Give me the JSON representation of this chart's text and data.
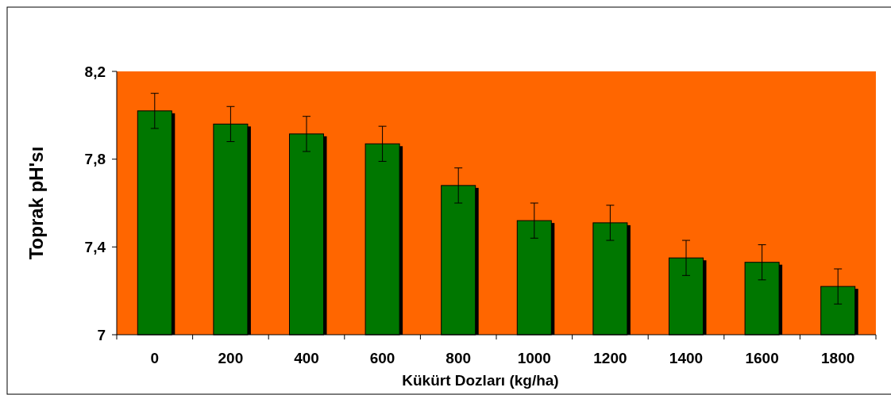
{
  "chart_data": {
    "type": "bar",
    "xlabel": "Kükürt Dozları (kg/ha)",
    "ylabel": "Toprak  pH'sı",
    "categories": [
      "0",
      "200",
      "400",
      "600",
      "800",
      "1000",
      "1200",
      "1400",
      "1600",
      "1800"
    ],
    "values": [
      8.02,
      7.96,
      7.915,
      7.87,
      7.68,
      7.52,
      7.51,
      7.35,
      7.33,
      7.22
    ],
    "errors": [
      0.08,
      0.08,
      0.08,
      0.08,
      0.08,
      0.08,
      0.08,
      0.08,
      0.08,
      0.08
    ],
    "color": "#007700",
    "ylim": [
      7,
      8.2
    ],
    "yticks": [
      7,
      {
        "value": 7.4,
        "label": "7,4"
      },
      {
        "value": 7.8,
        "label": "7,8"
      },
      {
        "value": 8.2,
        "label": "8,2"
      }
    ],
    "grid": false
  }
}
